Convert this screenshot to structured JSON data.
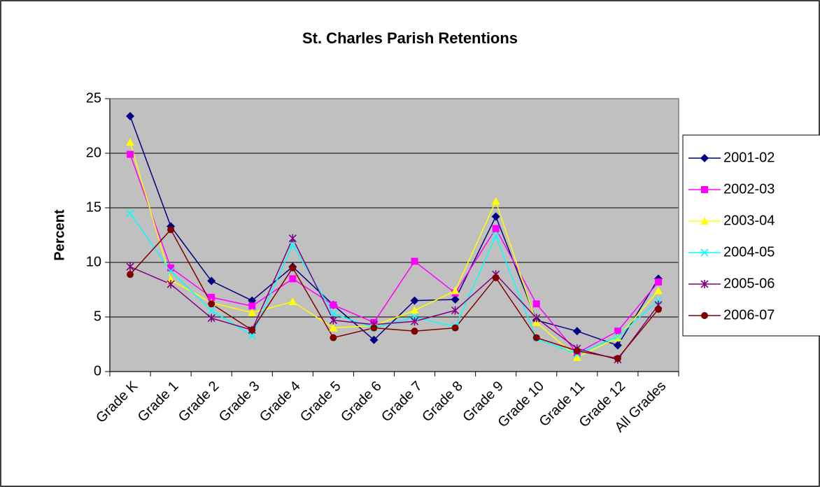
{
  "chart_data": {
    "type": "line",
    "title": "St. Charles Parish Retentions",
    "y_label": "Percent",
    "categories": [
      "Grade K",
      "Grade 1",
      "Grade 2",
      "Grade 3",
      "Grade 4",
      "Grade 5",
      "Grade 6",
      "Grade 7",
      "Grade 8",
      "Grade 9",
      "Grade 10",
      "Grade 11",
      "Grade 12",
      "All Grades"
    ],
    "series": [
      {
        "name": "2001-02",
        "color": "#000080",
        "marker": "diamond",
        "values": [
          23.4,
          13.3,
          8.3,
          6.5,
          9.6,
          6.1,
          2.9,
          6.5,
          6.6,
          14.2,
          4.7,
          3.7,
          2.4,
          8.5
        ]
      },
      {
        "name": "2002-03",
        "color": "#ff00ff",
        "marker": "square",
        "values": [
          19.9,
          9.5,
          6.8,
          6.0,
          8.5,
          6.1,
          4.5,
          10.1,
          7.2,
          13.1,
          6.2,
          1.7,
          3.7,
          8.2
        ]
      },
      {
        "name": "2003-04",
        "color": "#ffff00",
        "marker": "triangle",
        "values": [
          21.0,
          8.4,
          6.3,
          5.4,
          6.4,
          4.0,
          4.2,
          5.6,
          7.4,
          15.6,
          4.5,
          1.3,
          3.1,
          7.4
        ]
      },
      {
        "name": "2004-05",
        "color": "#00ffff",
        "marker": "x",
        "values": [
          14.5,
          9.2,
          5.6,
          3.3,
          11.6,
          5.3,
          4.0,
          5.0,
          4.1,
          12.4,
          3.0,
          1.6,
          3.2,
          6.5
        ]
      },
      {
        "name": "2005-06",
        "color": "#800080",
        "marker": "star",
        "values": [
          9.6,
          8.0,
          4.9,
          3.8,
          12.2,
          4.7,
          4.3,
          4.6,
          5.6,
          8.9,
          4.9,
          2.1,
          1.1,
          6.1
        ]
      },
      {
        "name": "2006-07",
        "color": "#800000",
        "marker": "circle",
        "values": [
          8.9,
          13.0,
          6.2,
          3.8,
          9.5,
          3.1,
          4.0,
          3.7,
          4.0,
          8.6,
          3.1,
          1.9,
          1.2,
          5.7
        ]
      }
    ],
    "ylim": [
      0,
      25
    ],
    "yticks": [
      0,
      5,
      10,
      15,
      20,
      25
    ],
    "grid": true,
    "legend": "right",
    "plot_background": "#c0c0c0"
  }
}
